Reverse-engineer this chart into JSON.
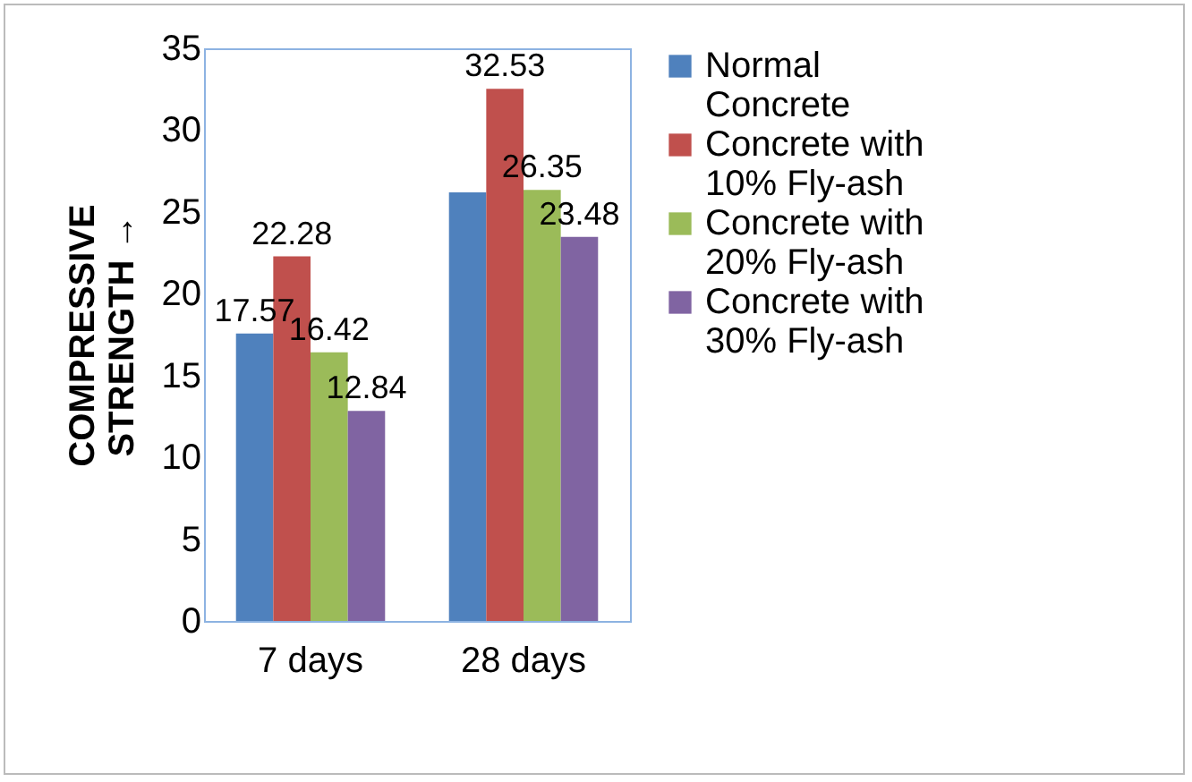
{
  "chart_data": {
    "type": "bar",
    "ylabel": "COMPRESSIVE STRENGTH →",
    "categories": [
      "7 days",
      "28 days"
    ],
    "series": [
      {
        "name": "Normal Concrete",
        "color": "#4f81bd",
        "values": [
          17.57,
          26.2
        ],
        "value_labels": [
          "17.57",
          null
        ]
      },
      {
        "name": "Concrete with 10% Fly-ash",
        "color": "#c0504d",
        "values": [
          22.28,
          32.53
        ],
        "value_labels": [
          "22.28",
          "32.53"
        ]
      },
      {
        "name": "Concrete with 20% Fly-ash",
        "color": "#9bbb59",
        "values": [
          16.42,
          26.35
        ],
        "value_labels": [
          "16.42",
          "26.35"
        ]
      },
      {
        "name": "Concrete with 30% Fly-ash",
        "color": "#8064a2",
        "values": [
          12.84,
          23.48
        ],
        "value_labels": [
          "12.84",
          "23.48"
        ]
      }
    ],
    "ylim": [
      0,
      35
    ],
    "yticks": [
      0,
      5,
      10,
      15,
      20,
      25,
      30,
      35
    ],
    "grid": false,
    "legend": "right"
  }
}
